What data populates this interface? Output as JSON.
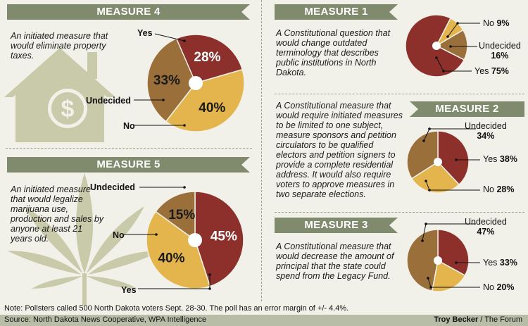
{
  "colors": {
    "yes": "#8d2f2b",
    "undecided": "#9a6f3a",
    "no": "#e4b44d",
    "banner": "#7f8b6c",
    "icon": "#c8caa9"
  },
  "measure4": {
    "title": "MEASURE 4",
    "desc": "An initiated measure that would eliminate property taxes.",
    "labels": {
      "yes": "Yes",
      "undecided": "Undecided",
      "no": "No"
    }
  },
  "measure5": {
    "title": "MEASURE 5",
    "desc": "An initiated measure that would legalize marijuana use, production and sales by anyone at least 21 years old.",
    "labels": {
      "yes": "Yes",
      "undecided": "Undecided",
      "no": "No"
    }
  },
  "measure1": {
    "title": "MEASURE 1",
    "desc": "A Constitutional question that would change outdated terminology that describes public institutions in North Dakota.",
    "labels": {
      "no": "No",
      "no_pct": "9%",
      "undecided": "Undecided",
      "undecided_pct": "16%",
      "yes": "Yes",
      "yes_pct": "75%"
    }
  },
  "measure2": {
    "title": "MEASURE 2",
    "desc": "A Constitutional measure that would require initiated measures to be limited to one subject, measure sponsors and petition circulators to be qualified electors and petition signers to provide a complete residential address. It would also require voters to approve measures in two separate elections.",
    "labels": {
      "undecided": "Undecided",
      "undecided_pct": "34%",
      "yes": "Yes",
      "yes_pct": "38%",
      "no": "No",
      "no_pct": "28%"
    }
  },
  "measure3": {
    "title": "MEASURE 3",
    "desc": "A Constitutional measure that would decrease the amount of principal that the state could spend from the Legacy Fund.",
    "labels": {
      "undecided": "Undecided",
      "undecided_pct": "47%",
      "yes": "Yes",
      "yes_pct": "33%",
      "no": "No",
      "no_pct": "20%"
    }
  },
  "note": "Note: Pollsters called 500 North Dakota voters Sept. 28-30. The poll has an error margin of +/- 4.4%.",
  "source": "Source: North Dakota News Cooperative, WPA Intelligence",
  "credit_name": "Troy Becker",
  "credit_org": " / The Forum",
  "chart_data": [
    {
      "type": "pie",
      "title": "MEASURE 4",
      "categories": [
        "Yes",
        "No",
        "Undecided"
      ],
      "values": [
        28,
        40,
        33
      ]
    },
    {
      "type": "pie",
      "title": "MEASURE 5",
      "categories": [
        "Yes",
        "No",
        "Undecided"
      ],
      "values": [
        45,
        40,
        15
      ]
    },
    {
      "type": "pie",
      "title": "MEASURE 1",
      "categories": [
        "No",
        "Undecided",
        "Yes"
      ],
      "values": [
        9,
        16,
        75
      ]
    },
    {
      "type": "pie",
      "title": "MEASURE 2",
      "categories": [
        "Yes",
        "No",
        "Undecided"
      ],
      "values": [
        38,
        28,
        34
      ]
    },
    {
      "type": "pie",
      "title": "MEASURE 3",
      "categories": [
        "Yes",
        "No",
        "Undecided"
      ],
      "values": [
        33,
        20,
        47
      ]
    }
  ]
}
